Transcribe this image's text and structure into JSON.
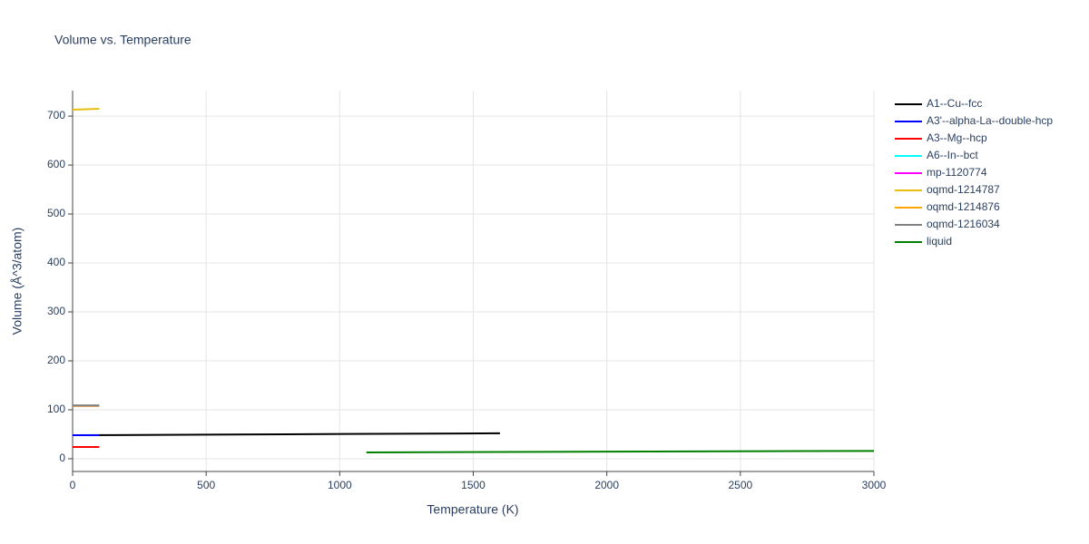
{
  "chart_data": {
    "type": "line",
    "title": "Volume vs. Temperature",
    "x_label": "Temperature (K)",
    "y_label": "Volume (Å^3/atom)",
    "xlim": [
      0,
      3000
    ],
    "ylim": [
      -26,
      752
    ],
    "xticks": [
      0,
      500,
      1000,
      1500,
      2000,
      2500,
      3000
    ],
    "yticks": [
      0,
      100,
      200,
      300,
      400,
      500,
      600,
      700
    ],
    "grid": true,
    "series": [
      {
        "name": "A1--Cu--fcc",
        "color": "#000000",
        "x": [
          0,
          800,
          1600
        ],
        "values": [
          48,
          50,
          52
        ]
      },
      {
        "name": "A3'--alpha-La--double-hcp",
        "color": "#0000ff",
        "x": [
          0,
          50,
          100
        ],
        "values": [
          48,
          48,
          48
        ]
      },
      {
        "name": "A3--Mg--hcp",
        "color": "#ff0000",
        "x": [
          0,
          50,
          100
        ],
        "values": [
          24,
          24,
          24
        ]
      },
      {
        "name": "A6--In--bct",
        "color": "#00ffff",
        "x": [
          0,
          50,
          100
        ],
        "values": [
          108,
          108,
          108
        ]
      },
      {
        "name": "mp-1120774",
        "color": "#ff00ff",
        "x": [
          0,
          50,
          100
        ],
        "values": [
          108,
          108,
          108
        ]
      },
      {
        "name": "oqmd-1214787",
        "color": "#e6be14",
        "x": [
          0,
          50,
          100
        ],
        "values": [
          713,
          714,
          715
        ]
      },
      {
        "name": "oqmd-1214876",
        "color": "#ffa500",
        "x": [
          0,
          50,
          100
        ],
        "values": [
          108,
          108,
          108
        ]
      },
      {
        "name": "oqmd-1216034",
        "color": "#808080",
        "x": [
          0,
          50,
          100
        ],
        "values": [
          109,
          109,
          109
        ]
      },
      {
        "name": "liquid",
        "color": "#008000",
        "x": [
          1100,
          2000,
          3000
        ],
        "values": [
          13,
          14.5,
          16
        ]
      }
    ]
  }
}
